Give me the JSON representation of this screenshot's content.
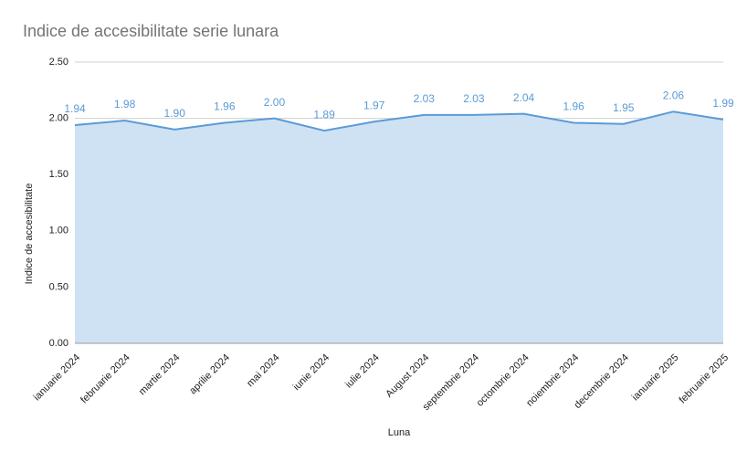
{
  "chart_data": {
    "type": "area",
    "title": "Indice de accesibilitate serie lunara",
    "x_label": "Luna",
    "y_label": "Indice de accesibilitate",
    "categories": [
      "ianuarie 2024",
      "februarie 2024",
      "martie 2024",
      "aprilie 2024",
      "mai 2024",
      "iunie 2024",
      "iulie 2024",
      "August 2024",
      "septembrie 2024",
      "octombrie 2024",
      "noiembrie 2024",
      "decembrie 2024",
      "ianuarie 2025",
      "februarie 2025"
    ],
    "values": [
      1.94,
      1.98,
      1.9,
      1.96,
      2.0,
      1.89,
      1.97,
      2.03,
      2.03,
      2.04,
      1.96,
      1.95,
      2.06,
      1.99
    ],
    "value_labels": [
      "1.94",
      "1.98",
      "1.90",
      "1.96",
      "2.00",
      "1.89",
      "1.97",
      "2.03",
      "2.03",
      "2.04",
      "1.96",
      "1.95",
      "2.06",
      "1.99"
    ],
    "color": "#5b9bd5",
    "fill_color": "#cfe2f3",
    "ylim": [
      0,
      2.5
    ],
    "yticks": [
      {
        "value": 0,
        "label": "0.00"
      },
      {
        "value": 0.5,
        "label": "0.50"
      },
      {
        "value": 1,
        "label": "1.00"
      },
      {
        "value": 1.5,
        "label": "1.50"
      },
      {
        "value": 2,
        "label": "2.00"
      },
      {
        "value": 2.5,
        "label": "2.50"
      }
    ],
    "grid": true
  }
}
